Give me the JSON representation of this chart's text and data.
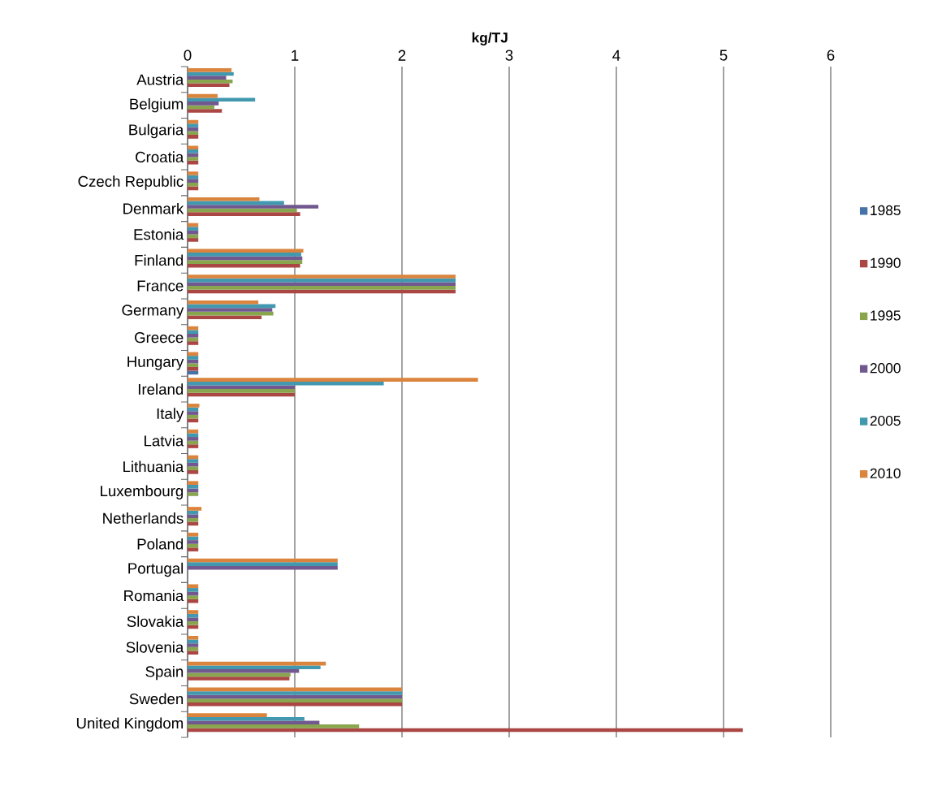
{
  "chart_data": {
    "type": "bar",
    "orientation": "horizontal",
    "title": "kg/TJ",
    "categories": [
      "Austria",
      "Belgium",
      "Bulgaria",
      "Croatia",
      "Czech Republic",
      "Denmark",
      "Estonia",
      "Finland",
      "France",
      "Germany",
      "Greece",
      "Hungary",
      "Ireland",
      "Italy",
      "Latvia",
      "Lithuania",
      "Luxembourg",
      "Netherlands",
      "Poland",
      "Portugal",
      "Romania",
      "Slovakia",
      "Slovenia",
      "Spain",
      "Sweden",
      "United Kingdom"
    ],
    "xlim": [
      0,
      6
    ],
    "xticks": [
      0,
      1,
      2,
      3,
      4,
      5,
      6
    ],
    "grid": "x",
    "legend": "right",
    "series": [
      {
        "name": "1985",
        "color": "#4572a7",
        "values": [
          null,
          null,
          null,
          null,
          null,
          null,
          null,
          null,
          null,
          null,
          null,
          0.1,
          null,
          null,
          null,
          null,
          null,
          null,
          null,
          null,
          null,
          null,
          null,
          null,
          null,
          null
        ]
      },
      {
        "name": "1990",
        "color": "#aa4643",
        "values": [
          0.39,
          0.32,
          0.1,
          0.1,
          0.1,
          1.05,
          0.1,
          1.05,
          2.5,
          0.69,
          0.1,
          0.1,
          1.0,
          0.1,
          0.1,
          0.1,
          null,
          0.1,
          0.1,
          null,
          0.1,
          0.1,
          0.1,
          0.95,
          2.0,
          5.18
        ]
      },
      {
        "name": "1995",
        "color": "#89a54e",
        "values": [
          0.42,
          0.25,
          0.1,
          0.1,
          0.1,
          1.02,
          0.1,
          1.07,
          2.5,
          0.8,
          0.1,
          0.1,
          1.0,
          0.1,
          0.1,
          0.1,
          0.1,
          0.1,
          0.1,
          null,
          0.1,
          0.1,
          0.1,
          0.96,
          2.0,
          1.6
        ]
      },
      {
        "name": "2000",
        "color": "#71588f",
        "values": [
          0.36,
          0.29,
          0.1,
          0.1,
          0.1,
          1.22,
          0.1,
          1.07,
          2.5,
          0.79,
          0.1,
          0.1,
          1.0,
          0.1,
          0.1,
          0.1,
          0.1,
          0.1,
          0.1,
          1.4,
          0.1,
          0.1,
          0.1,
          1.04,
          2.0,
          1.23
        ]
      },
      {
        "name": "2005",
        "color": "#4198af",
        "values": [
          0.43,
          0.63,
          0.1,
          0.1,
          0.1,
          0.9,
          0.1,
          1.06,
          2.5,
          0.82,
          0.1,
          0.1,
          1.83,
          0.1,
          0.1,
          0.1,
          0.1,
          0.1,
          0.1,
          1.4,
          0.1,
          0.1,
          0.1,
          1.24,
          2.0,
          1.09
        ]
      },
      {
        "name": "2010",
        "color": "#db843d",
        "values": [
          0.41,
          0.28,
          0.1,
          0.1,
          0.1,
          0.67,
          0.1,
          1.08,
          2.5,
          0.66,
          0.1,
          0.1,
          2.71,
          0.11,
          0.1,
          0.1,
          0.1,
          0.13,
          0.1,
          1.4,
          0.1,
          0.1,
          0.1,
          1.29,
          2.0,
          0.74
        ]
      }
    ]
  }
}
